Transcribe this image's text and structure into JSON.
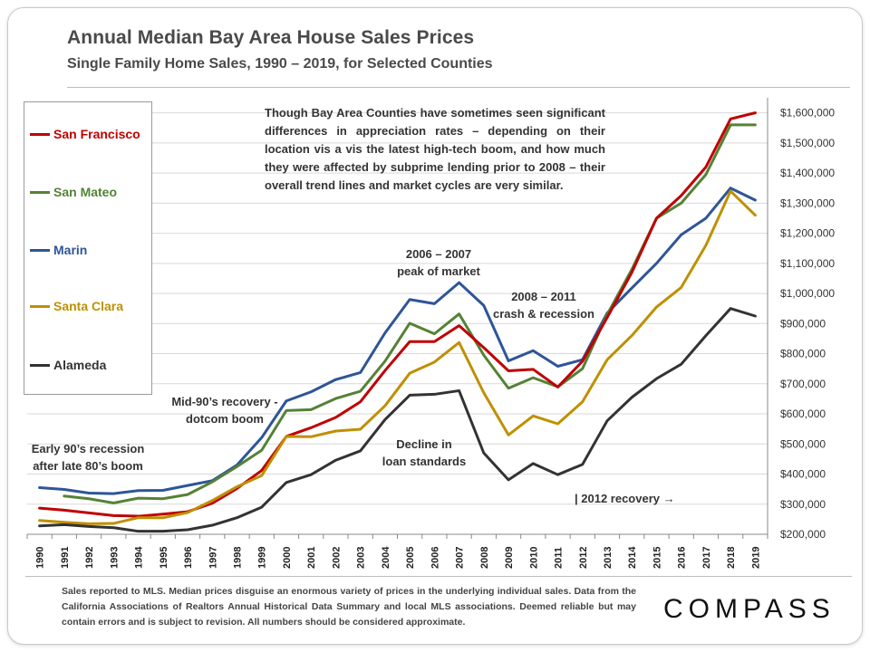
{
  "header": {
    "title": "Annual Median Bay Area House Sales Prices",
    "subtitle": "Single Family Home Sales, 1990 – 2019, for Selected Counties"
  },
  "legend": {
    "items": [
      {
        "label": "San Francisco",
        "color": "#c00000"
      },
      {
        "label": "San Mateo",
        "color": "#548235"
      },
      {
        "label": "Marin",
        "color": "#2e5597"
      },
      {
        "label": "Santa Clara",
        "color": "#bf9000"
      },
      {
        "label": "Alameda",
        "color": "#333333"
      }
    ]
  },
  "note": "Though Bay Area Counties have sometimes seen significant differences in appreciation rates – depending on their location vis a vis the latest high-tech boom, and how much they were affected by subprime lending prior to 2008 – their overall trend lines and market cycles are very similar.",
  "annotations": {
    "early90s_line1": "Early 90’s recession",
    "early90s_line2": "after late 80’s boom",
    "mid90s_line1": "Mid-90’s recovery -",
    "mid90s_line2": "dotcom boom",
    "peak_line1": "2006 – 2007",
    "peak_line2": "peak of market",
    "crash_line1": "2008 – 2011",
    "crash_line2": "crash & recession",
    "decline_line1": "Decline in",
    "decline_line2": "loan standards",
    "recovery2012": "| 2012 recovery →"
  },
  "footer": {
    "text": "Sales reported to MLS. Median prices disguise an enormous variety of prices in the underlying individual sales. Data from the California Associations of Realtors Annual Historical Data Summary and local MLS associations. Deemed reliable but may contain errors and is subject to revision. All numbers should be considered approximate."
  },
  "brand": {
    "logo_text": "COMPASS"
  },
  "chart_data": {
    "type": "line",
    "title": "Annual Median Bay Area House Sales Prices",
    "subtitle": "Single Family Home Sales, 1990 – 2019, for Selected Counties",
    "xlabel": "",
    "ylabel": "",
    "x": [
      "1990",
      "1991",
      "1992",
      "1993",
      "1994",
      "1995",
      "1996",
      "1997",
      "1998",
      "1999",
      "2000",
      "2001",
      "2002",
      "2003",
      "2004",
      "2005",
      "2006",
      "2007",
      "2008",
      "2009",
      "2010",
      "2011",
      "2012",
      "2013",
      "2014",
      "2015",
      "2016",
      "2017",
      "2018",
      "2019"
    ],
    "ylim": [
      200000,
      1650000
    ],
    "yticks": [
      200000,
      300000,
      400000,
      500000,
      600000,
      700000,
      800000,
      900000,
      1000000,
      1100000,
      1200000,
      1300000,
      1400000,
      1500000,
      1600000
    ],
    "ytick_labels": [
      "$200,000",
      "$300,000",
      "$400,000",
      "$500,000",
      "$600,000",
      "$700,000",
      "$800,000",
      "$900,000",
      "$1,000,000",
      "$1,100,000",
      "$1,200,000",
      "$1,300,000",
      "$1,400,000",
      "$1,500,000",
      "$1,600,000"
    ],
    "legend_position": "left",
    "grid": "horizontal",
    "series": [
      {
        "name": "Marin",
        "color": "#2e5597",
        "values": [
          355000,
          349000,
          337000,
          335000,
          345000,
          346000,
          362000,
          378000,
          430000,
          521000,
          643000,
          673000,
          714000,
          737000,
          869000,
          980000,
          966000,
          1036000,
          960000,
          776000,
          810000,
          758000,
          780000,
          935000,
          1018000,
          1100000,
          1195000,
          1250000,
          1350000,
          1310000
        ]
      },
      {
        "name": "San Mateo",
        "color": "#548235",
        "values": [
          null,
          327000,
          318000,
          304000,
          320000,
          318000,
          332000,
          374000,
          425000,
          479000,
          611000,
          614000,
          651000,
          675000,
          775000,
          901000,
          866000,
          932000,
          795000,
          685000,
          720000,
          690000,
          750000,
          930000,
          1080000,
          1250000,
          1300000,
          1395000,
          1560000,
          1560000
        ]
      },
      {
        "name": "San Francisco",
        "color": "#c00000",
        "values": [
          287000,
          280000,
          271000,
          262000,
          260000,
          267000,
          275000,
          303000,
          352000,
          412000,
          525000,
          554000,
          588000,
          640000,
          744000,
          840000,
          840000,
          893000,
          820000,
          743000,
          748000,
          689000,
          775000,
          920000,
          1070000,
          1250000,
          1325000,
          1420000,
          1580000,
          1600000
        ]
      },
      {
        "name": "Santa Clara",
        "color": "#bf9000",
        "values": [
          246000,
          240000,
          235000,
          236000,
          255000,
          255000,
          272000,
          312000,
          358000,
          395000,
          525000,
          524000,
          543000,
          549000,
          627000,
          735000,
          772000,
          837000,
          670000,
          530000,
          593000,
          567000,
          640000,
          780000,
          860000,
          955000,
          1020000,
          1160000,
          1340000,
          1260000
        ]
      },
      {
        "name": "Alameda",
        "color": "#333333",
        "values": [
          228000,
          232000,
          226000,
          222000,
          210000,
          210000,
          215000,
          230000,
          255000,
          290000,
          372000,
          398000,
          446000,
          477000,
          581000,
          662000,
          665000,
          677000,
          470000,
          381000,
          435000,
          398000,
          432000,
          577000,
          655000,
          717000,
          765000,
          860000,
          950000,
          925000
        ]
      }
    ]
  }
}
